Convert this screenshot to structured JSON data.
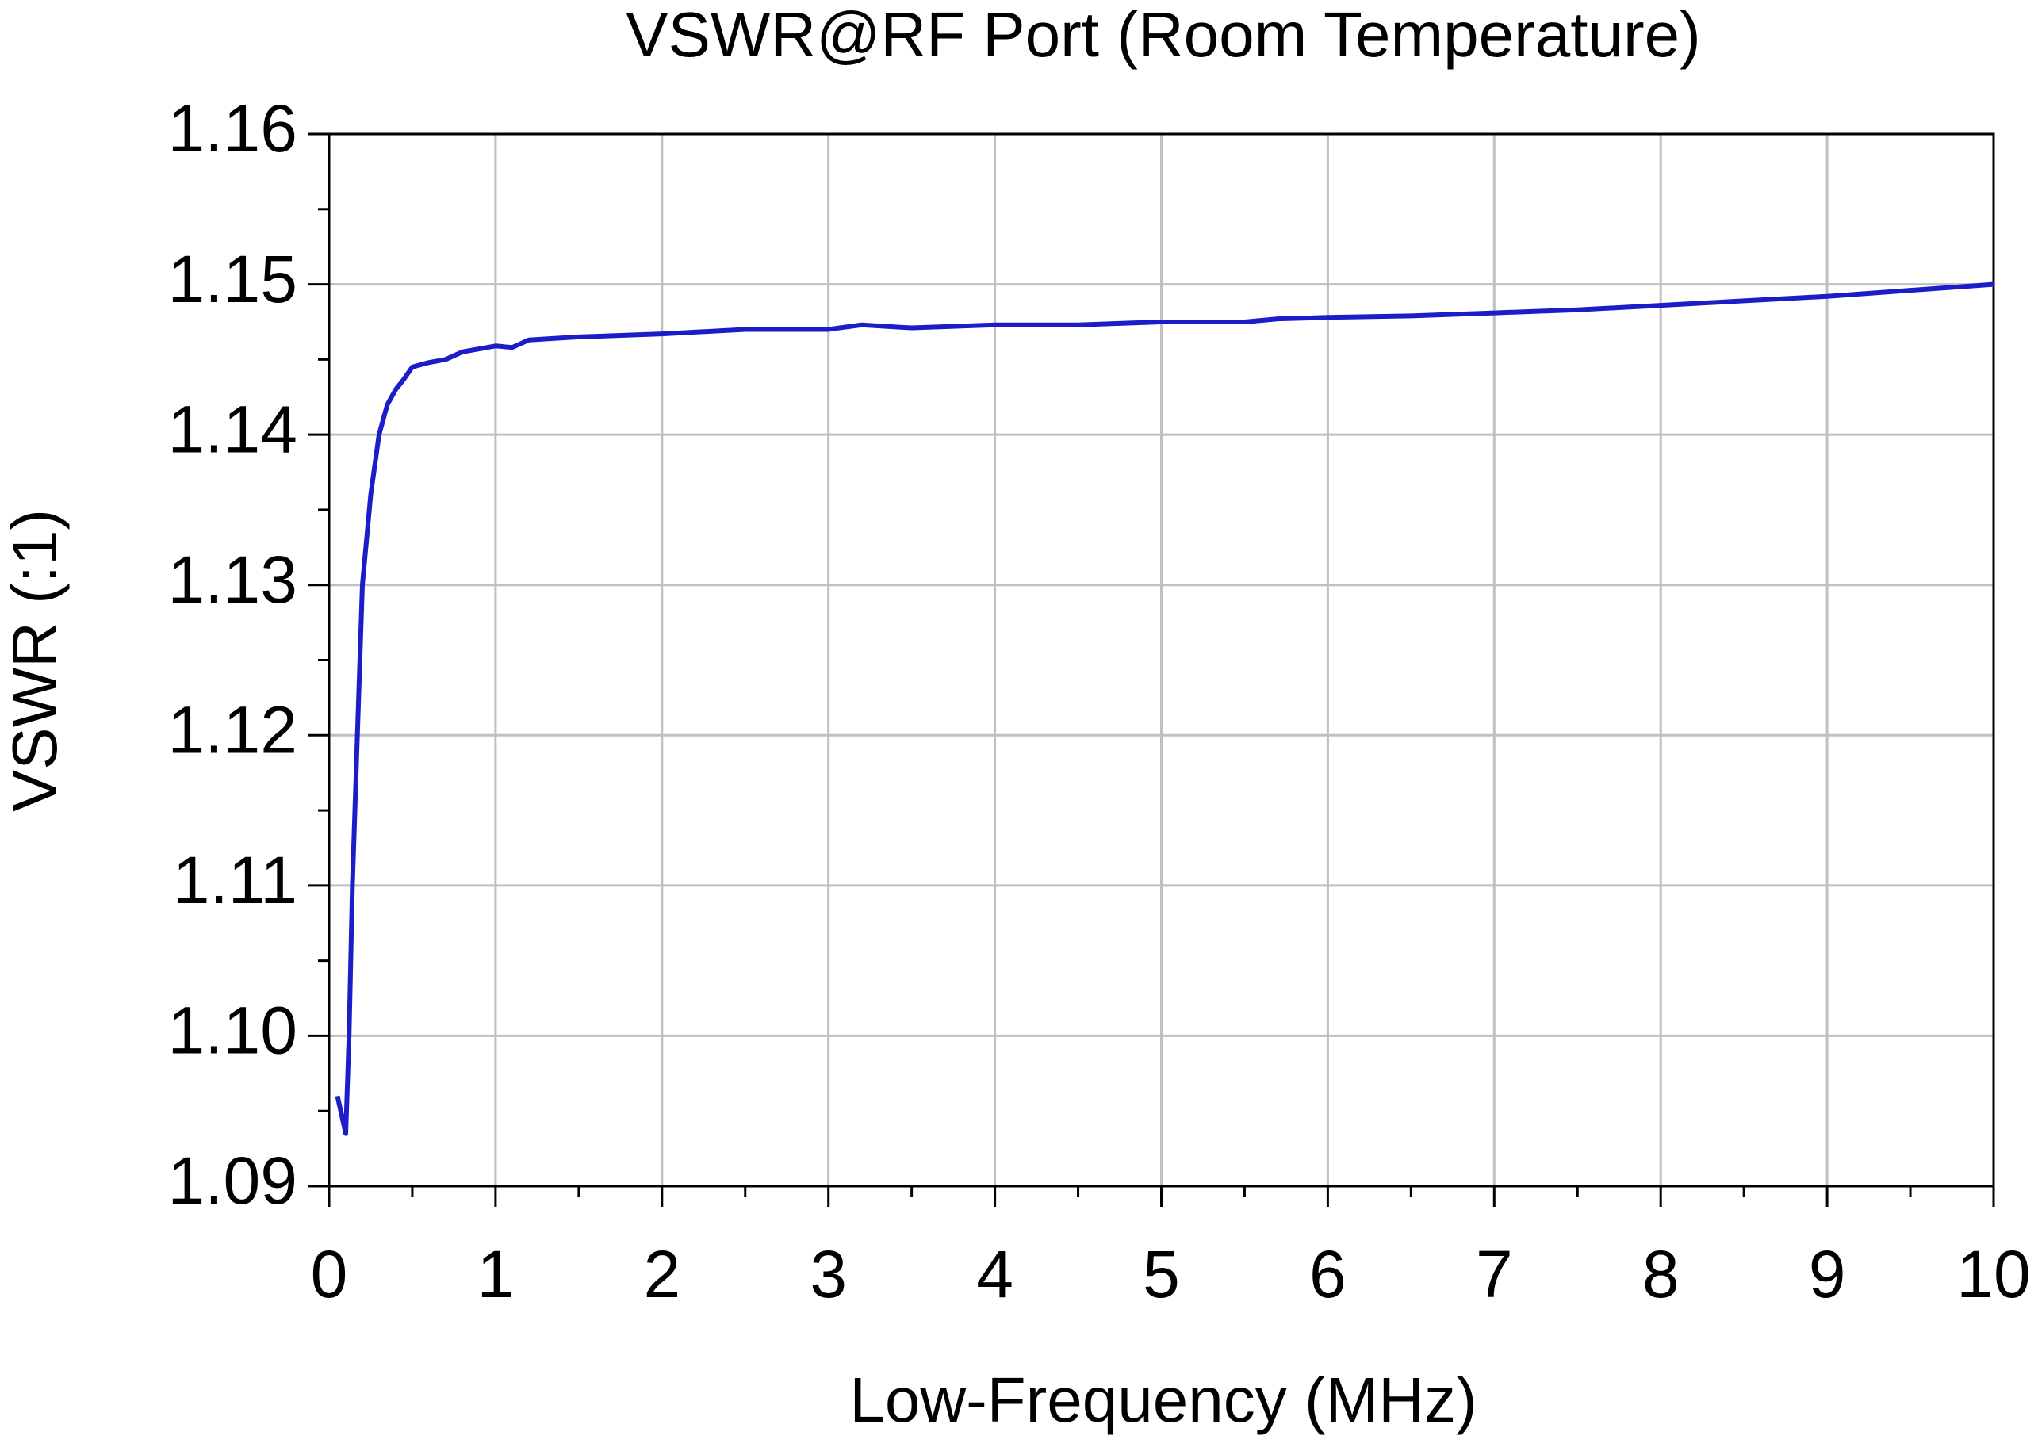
{
  "chart_data": {
    "type": "line",
    "title": "VSWR@RF Port (Room Temperature)",
    "x_label": "Low-Frequency (MHz)",
    "y_label": "VSWR (:1)",
    "x": [
      0.05,
      0.1,
      0.12,
      0.14,
      0.17,
      0.2,
      0.25,
      0.3,
      0.35,
      0.4,
      0.45,
      0.5,
      0.6,
      0.7,
      0.8,
      1.0,
      1.1,
      1.2,
      1.5,
      2,
      2.5,
      3,
      3.2,
      3.5,
      4,
      4.5,
      5,
      5.5,
      5.7,
      6,
      6.5,
      7,
      7.5,
      8,
      8.5,
      9,
      9.5,
      10
    ],
    "series": [
      {
        "name": "VSWR",
        "color": "#1c1cc8",
        "values": [
          1.096,
          1.0935,
          1.1,
          1.11,
          1.12,
          1.13,
          1.136,
          1.14,
          1.142,
          1.143,
          1.1437,
          1.1445,
          1.1448,
          1.145,
          1.1455,
          1.1459,
          1.1458,
          1.1463,
          1.1465,
          1.1467,
          1.147,
          1.147,
          1.1473,
          1.1471,
          1.1473,
          1.1473,
          1.1475,
          1.1475,
          1.1477,
          1.1478,
          1.1479,
          1.1481,
          1.1483,
          1.1486,
          1.1489,
          1.1492,
          1.1496,
          1.15
        ]
      }
    ],
    "xlim": [
      0,
      10
    ],
    "xticks": [
      0,
      1,
      2,
      3,
      4,
      5,
      6,
      7,
      8,
      9,
      10
    ],
    "ylim": [
      1.09,
      1.16
    ],
    "yticks": [
      1.09,
      {
        "value": 1.1,
        "label": "1.10"
      },
      1.11,
      1.12,
      1.13,
      1.14,
      1.15,
      1.16
    ],
    "grid": true
  }
}
